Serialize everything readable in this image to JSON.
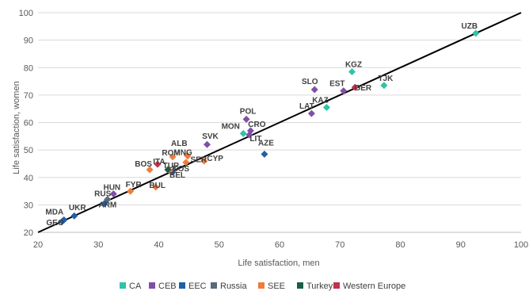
{
  "chart_data": {
    "type": "scatter",
    "xlabel": "Life satisfaction, men",
    "ylabel": "Life satisfaction, women",
    "xlim": [
      20,
      100
    ],
    "ylim": [
      20,
      100
    ],
    "x_ticks": [
      "20",
      "30",
      "40",
      "50",
      "60",
      "70",
      "80",
      "90",
      "100"
    ],
    "y_ticks": [
      "20",
      "30",
      "40",
      "50",
      "60",
      "70",
      "80",
      "90",
      "100"
    ],
    "grid": "horizontal",
    "diagonal_line": {
      "from": [
        20,
        20
      ],
      "to": [
        100,
        100
      ],
      "color": "#000000"
    },
    "legend_position": "bottom",
    "series": [
      {
        "name": "CA",
        "color": "#2ec4a9",
        "points": [
          {
            "label": "UZB",
            "x": 92.5,
            "y": 92.5
          },
          {
            "label": "KGZ",
            "x": 72.0,
            "y": 78.5
          },
          {
            "label": "TJK",
            "x": 77.3,
            "y": 73.5
          },
          {
            "label": "KAZ",
            "x": 67.8,
            "y": 65.5
          },
          {
            "label": "MON",
            "x": 54.0,
            "y": 56.0
          }
        ]
      },
      {
        "name": "CEB",
        "color": "#7f4fa8",
        "points": [
          {
            "label": "SLO",
            "x": 65.8,
            "y": 72.0
          },
          {
            "label": "EST",
            "x": 70.6,
            "y": 71.5
          },
          {
            "label": "LAT",
            "x": 65.3,
            "y": 63.3
          },
          {
            "label": "POL",
            "x": 54.5,
            "y": 61.2
          },
          {
            "label": "CRO",
            "x": 55.2,
            "y": 57.0
          },
          {
            "label": "LIT",
            "x": 55.0,
            "y": 55.5
          },
          {
            "label": "SVK",
            "x": 48.0,
            "y": 52.0
          },
          {
            "label": "HUN",
            "x": 32.5,
            "y": 34.0
          }
        ]
      },
      {
        "name": "EEC",
        "color": "#1f5fa8",
        "points": [
          {
            "label": "AZE",
            "x": 57.5,
            "y": 48.5
          },
          {
            "label": "UKR",
            "x": 26.0,
            "y": 26.0
          },
          {
            "label": "GEO",
            "x": 24.0,
            "y": 24.0
          },
          {
            "label": "BEL",
            "x": 42.3,
            "y": 42.0
          },
          {
            "label": "MDA",
            "x": 24.3,
            "y": 24.5
          },
          {
            "label": "ARM",
            "x": 31.0,
            "y": 30.5
          }
        ]
      },
      {
        "name": "Russia",
        "color": "#5a6a78",
        "points": [
          {
            "label": "RUS",
            "x": 31.5,
            "y": 32.0
          }
        ]
      },
      {
        "name": "SEE",
        "color": "#f07c3c",
        "points": [
          {
            "label": "BOS",
            "x": 38.5,
            "y": 42.8
          },
          {
            "label": "ROM",
            "x": 42.3,
            "y": 47.5
          },
          {
            "label": "MNG",
            "x": 44.8,
            "y": 47.8
          },
          {
            "label": "ALB",
            "x": 44.7,
            "y": 48.0
          },
          {
            "label": "SER",
            "x": 44.5,
            "y": 45.5
          },
          {
            "label": "BUL",
            "x": 39.5,
            "y": 36.5
          },
          {
            "label": "FYR",
            "x": 35.3,
            "y": 35.0
          },
          {
            "label": "KOS",
            "x": 41.8,
            "y": 42.5
          },
          {
            "label": "CYP",
            "x": 47.5,
            "y": 46.0
          }
        ]
      },
      {
        "name": "Turkey",
        "color": "#1a5e4a",
        "points": [
          {
            "label": "TUR",
            "x": 41.5,
            "y": 42.8
          }
        ]
      },
      {
        "name": "Western Europe",
        "color": "#c0334d",
        "points": [
          {
            "label": "ITA",
            "x": 39.8,
            "y": 44.8
          },
          {
            "label": "GER",
            "x": 72.5,
            "y": 72.8
          }
        ]
      }
    ]
  }
}
